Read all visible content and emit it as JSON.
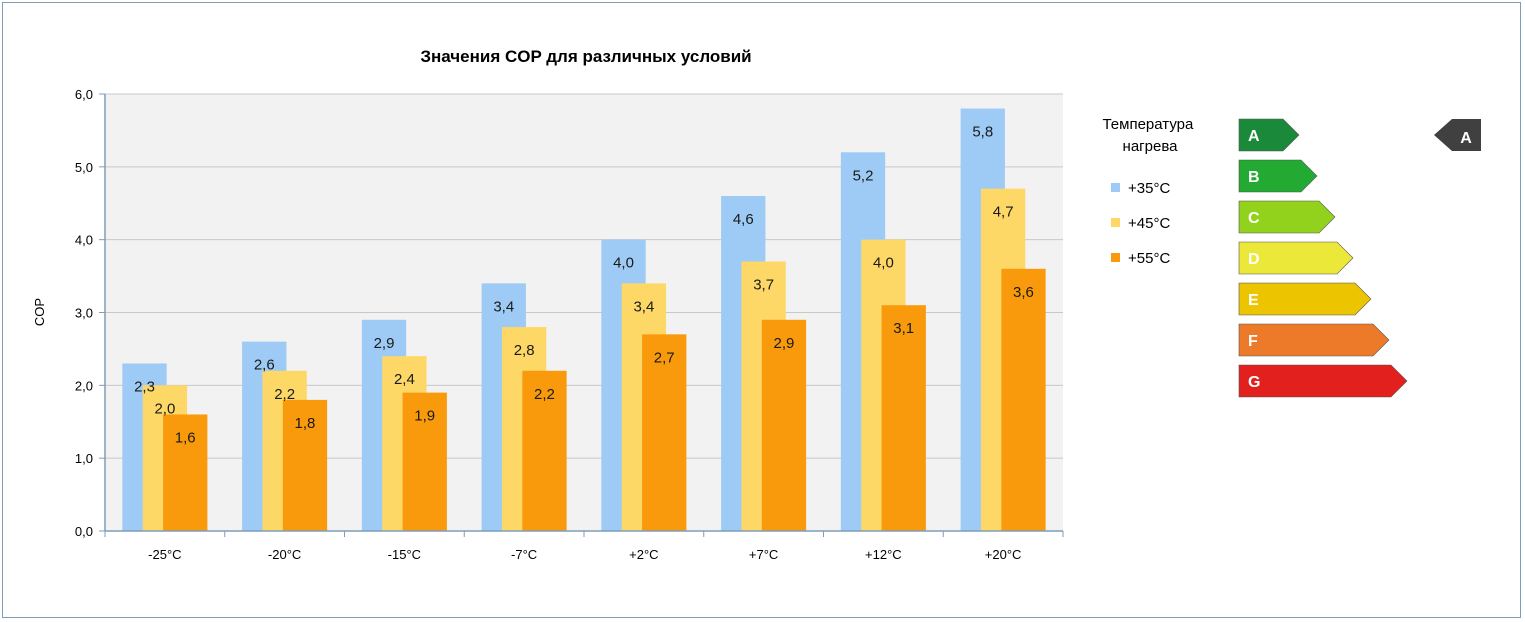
{
  "chart_data": {
    "type": "bar",
    "title": "Значения COP для различных условий",
    "ylabel": "COP",
    "xlabel": "",
    "ylim": [
      0,
      6
    ],
    "yticks": [
      "0,0",
      "1,0",
      "2,0",
      "3,0",
      "4,0",
      "5,0",
      "6,0"
    ],
    "grid": true,
    "legend_position": "right",
    "legend_title": "Температура нагрева",
    "categories": [
      "-25°C",
      "-20°C",
      "-15°C",
      "-7°C",
      "+2°C",
      "+7°C",
      "+12°C",
      "+20°C"
    ],
    "series": [
      {
        "name": "+35°C",
        "color": "#9ecbf5",
        "values": [
          2.3,
          2.6,
          2.9,
          3.4,
          4.0,
          4.6,
          5.2,
          5.8
        ],
        "labels": [
          "2,3",
          "2,6",
          "2,9",
          "3,4",
          "4,0",
          "4,6",
          "5,2",
          "5,8"
        ]
      },
      {
        "name": "+45°C",
        "color": "#fdd867",
        "values": [
          2.0,
          2.2,
          2.4,
          2.8,
          3.4,
          3.7,
          4.0,
          4.7
        ],
        "labels": [
          "2,0",
          "2,2",
          "2,4",
          "2,8",
          "3,4",
          "3,7",
          "4,0",
          "4,7"
        ]
      },
      {
        "name": "+55°C",
        "color": "#f99a0d",
        "values": [
          1.6,
          1.8,
          1.9,
          2.2,
          2.7,
          2.9,
          3.1,
          3.6
        ],
        "labels": [
          "1,6",
          "1,8",
          "1,9",
          "2,2",
          "2,7",
          "2,9",
          "3,1",
          "3,6"
        ]
      }
    ]
  },
  "energy_label": {
    "classes": [
      {
        "letter": "A",
        "color": "#1a8a3a"
      },
      {
        "letter": "B",
        "color": "#22aa32"
      },
      {
        "letter": "C",
        "color": "#93d21c"
      },
      {
        "letter": "D",
        "color": "#ece839"
      },
      {
        "letter": "E",
        "color": "#edc400"
      },
      {
        "letter": "F",
        "color": "#ec7a28"
      },
      {
        "letter": "G",
        "color": "#e2201e"
      }
    ],
    "rating": {
      "letter": "A",
      "color": "#404040"
    }
  }
}
